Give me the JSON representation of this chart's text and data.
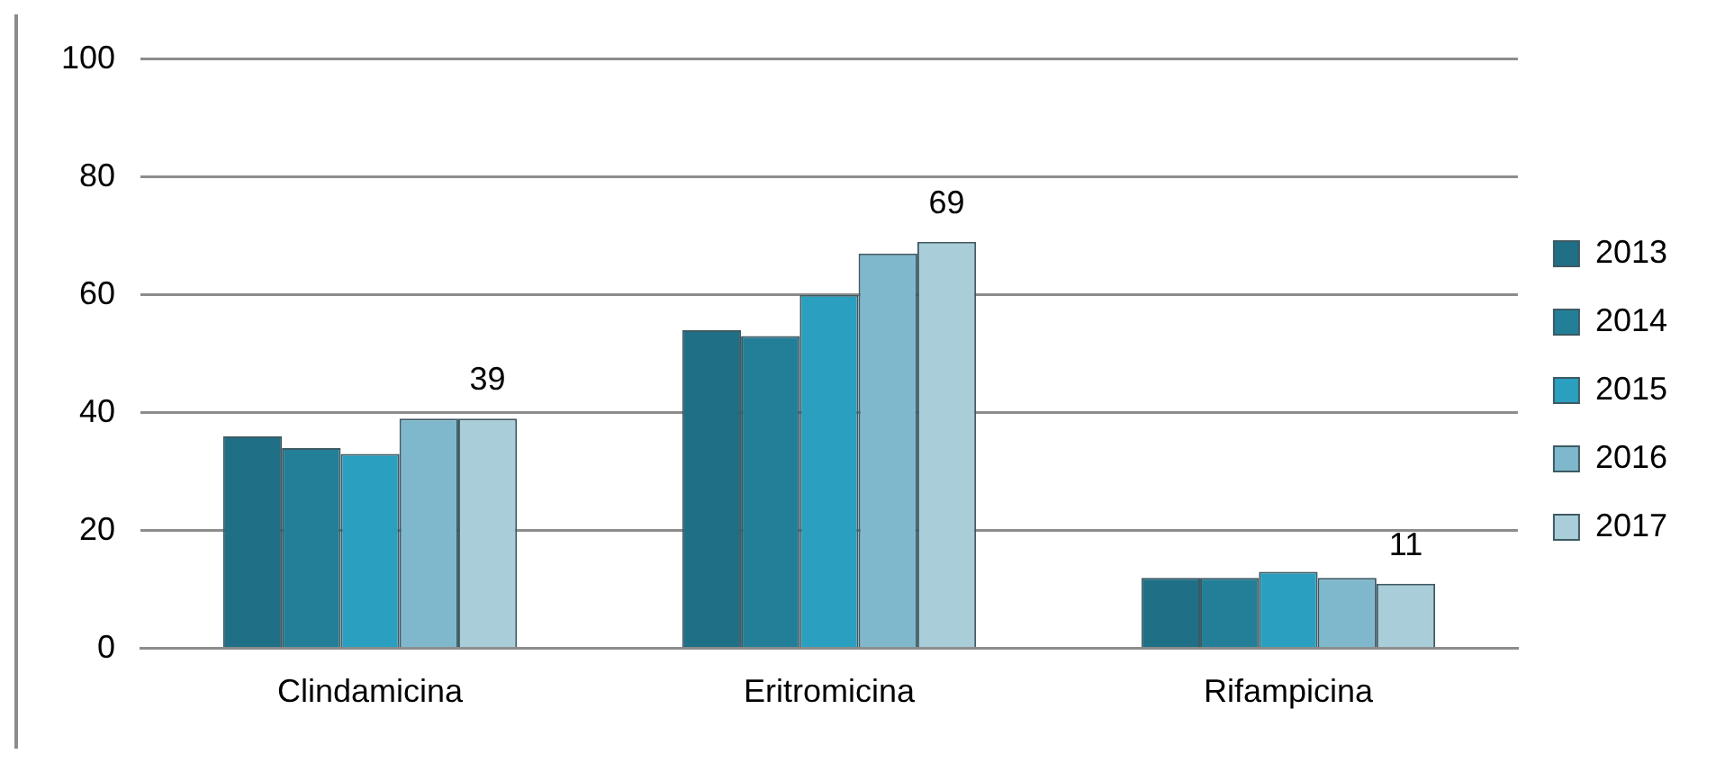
{
  "chart_data": {
    "type": "bar",
    "categories": [
      "Clindamicina",
      "Eritromicina",
      "Rifampicina"
    ],
    "series": [
      {
        "name": "2013",
        "color": "#1f6f86",
        "values": [
          36,
          54,
          12
        ]
      },
      {
        "name": "2014",
        "color": "#237f98",
        "values": [
          34,
          53,
          12
        ]
      },
      {
        "name": "2015",
        "color": "#2a9fc0",
        "values": [
          33,
          60,
          13
        ]
      },
      {
        "name": "2016",
        "color": "#7fb8cc",
        "values": [
          39,
          67,
          12
        ]
      },
      {
        "name": "2017",
        "color": "#a9cdd9",
        "values": [
          39,
          69,
          11
        ],
        "value_labels": [
          "39",
          "69",
          "11"
        ]
      }
    ],
    "ylim": [
      0,
      100
    ],
    "yticks": [
      0,
      20,
      40,
      60,
      80,
      100
    ],
    "grid": "y",
    "legend": "right"
  }
}
